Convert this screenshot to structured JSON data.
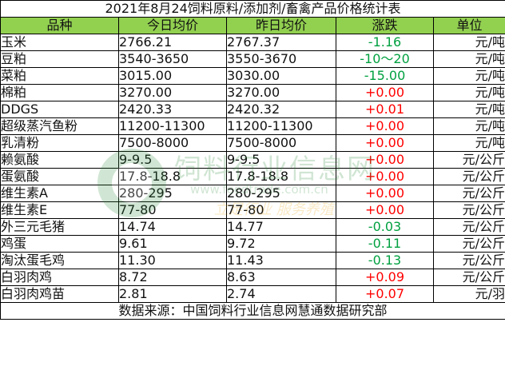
{
  "title": "2021年8月24饲料原料/添加剂/畜禽产品价格统计表",
  "columns": [
    "品种",
    "今日均价",
    "昨日均价",
    "涨跌",
    "单位"
  ],
  "rows": [
    {
      "name": "玉米",
      "today": "2766.21",
      "yesterday": "2767.37",
      "change": "-1.16",
      "trend": "down",
      "unit": "元/吨"
    },
    {
      "name": "豆粕",
      "today": "3540-3650",
      "yesterday": "3550-3670",
      "change": "-10～20",
      "trend": "down",
      "unit": "元/吨"
    },
    {
      "name": "菜粕",
      "today": "3015.00",
      "yesterday": "3030.00",
      "change": "-15.00",
      "trend": "down",
      "unit": "元/吨"
    },
    {
      "name": "棉粕",
      "today": "3270.00",
      "yesterday": "3270.00",
      "change": "+0.00",
      "trend": "up",
      "unit": "元/吨"
    },
    {
      "name": "DDGS",
      "today": "2420.33",
      "yesterday": "2420.32",
      "change": "+0.01",
      "trend": "up",
      "unit": "元/吨"
    },
    {
      "name": "超级蒸汽鱼粉",
      "today": "11200-11300",
      "yesterday": "11200-11300",
      "change": "+0.00",
      "trend": "up",
      "unit": "元/吨"
    },
    {
      "name": "乳清粉",
      "today": "7500-8000",
      "yesterday": "7500-8000",
      "change": "+0.00",
      "trend": "up",
      "unit": "元/吨"
    },
    {
      "name": "赖氨酸",
      "today": "9-9.5",
      "yesterday": "9-9.5",
      "change": "+0.00",
      "trend": "up",
      "unit": "元/公斤"
    },
    {
      "name": "蛋氨酸",
      "today": "17.8-18.8",
      "yesterday": "17.8-18.8",
      "change": "+0.00",
      "trend": "up",
      "unit": "元/公斤"
    },
    {
      "name": "维生素A",
      "today": "280-295",
      "yesterday": "280-295",
      "change": "+0.00",
      "trend": "up",
      "unit": "元/公斤"
    },
    {
      "name": "维生素E",
      "today": "77-80",
      "yesterday": "77-80",
      "change": "+0.00",
      "trend": "up",
      "unit": "元/公斤"
    },
    {
      "name": "外三元毛猪",
      "today": "14.74",
      "yesterday": "14.77",
      "change": "-0.03",
      "trend": "down",
      "unit": "元/公斤"
    },
    {
      "name": "鸡蛋",
      "today": "9.61",
      "yesterday": "9.72",
      "change": "-0.11",
      "trend": "down",
      "unit": "元/公斤"
    },
    {
      "name": "淘汰蛋毛鸡",
      "today": "11.30",
      "yesterday": "11.43",
      "change": "-0.13",
      "trend": "down",
      "unit": "元/公斤"
    },
    {
      "name": "白羽肉鸡",
      "today": "8.72",
      "yesterday": "8.63",
      "change": "+0.09",
      "trend": "up",
      "unit": "元/公斤"
    },
    {
      "name": "白羽肉鸡苗",
      "today": "2.81",
      "yesterday": "2.74",
      "change": "+0.07",
      "trend": "up",
      "unit": "元/羽"
    }
  ],
  "source": "数据来源：中国饲料行业信息网慧通数据研究部",
  "watermark": {
    "name": "饲料行业信息网",
    "url": "www.feedtrade.com.cn",
    "slogan": "立足行业 服务养殖"
  },
  "colors": {
    "header_bg": "#92d050",
    "down": "#00a040",
    "up": "#ff0000",
    "border": "#000000"
  }
}
